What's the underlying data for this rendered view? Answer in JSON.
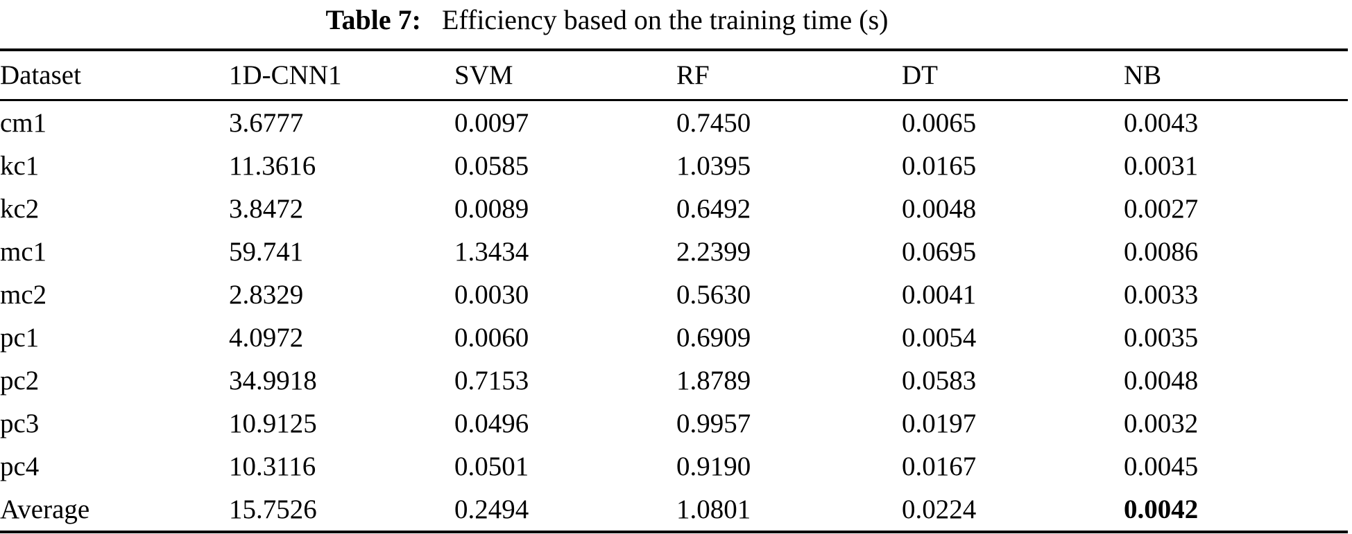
{
  "caption": {
    "label": "Table 7:",
    "text": "Efficiency based on the training time (s)"
  },
  "table": {
    "columns": [
      "Dataset",
      "1D-CNN1",
      "SVM",
      "RF",
      "DT",
      "NB"
    ],
    "rows": [
      {
        "dataset": "cm1",
        "values": [
          "3.6777",
          "0.0097",
          "0.7450",
          "0.0065",
          "0.0043"
        ]
      },
      {
        "dataset": "kc1",
        "values": [
          "11.3616",
          "0.0585",
          "1.0395",
          "0.0165",
          "0.0031"
        ]
      },
      {
        "dataset": "kc2",
        "values": [
          "3.8472",
          "0.0089",
          "0.6492",
          "0.0048",
          "0.0027"
        ]
      },
      {
        "dataset": "mc1",
        "values": [
          "59.741",
          "1.3434",
          "2.2399",
          "0.0695",
          "0.0086"
        ]
      },
      {
        "dataset": "mc2",
        "values": [
          "2.8329",
          "0.0030",
          "0.5630",
          "0.0041",
          "0.0033"
        ]
      },
      {
        "dataset": "pc1",
        "values": [
          "4.0972",
          "0.0060",
          "0.6909",
          "0.0054",
          "0.0035"
        ]
      },
      {
        "dataset": "pc2",
        "values": [
          "34.9918",
          "0.7153",
          "1.8789",
          "0.0583",
          "0.0048"
        ]
      },
      {
        "dataset": "pc3",
        "values": [
          "10.9125",
          "0.0496",
          "0.9957",
          "0.0197",
          "0.0032"
        ]
      },
      {
        "dataset": "pc4",
        "values": [
          "10.3116",
          "0.0501",
          "0.9190",
          "0.0167",
          "0.0045"
        ]
      },
      {
        "dataset": "Average",
        "values": [
          "15.7526",
          "0.2494",
          "1.0801",
          "0.0224",
          "0.0042"
        ],
        "bold_indices": [
          4
        ]
      }
    ]
  },
  "colors": {
    "text": "#000000",
    "background": "#ffffff",
    "rule": "#000000"
  }
}
